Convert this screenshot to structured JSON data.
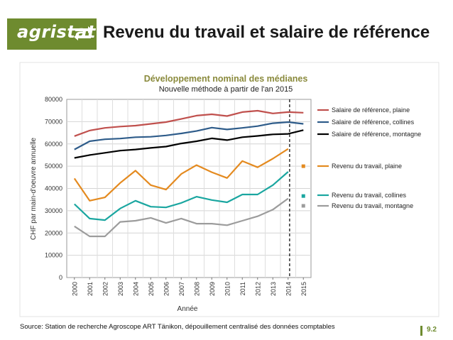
{
  "header": {
    "logo_text": "agristat",
    "title": "Revenu du travail et salaire de référence"
  },
  "chart_data": {
    "type": "line",
    "title": "Développement nominal des médianes",
    "subtitle": "Nouvelle méthode à partir de l'an 2015",
    "xlabel": "Année",
    "ylabel": "CHF par main-d'oeuvre annuelle",
    "ylim": [
      0,
      80000
    ],
    "yticks": [
      0,
      10000,
      20000,
      30000,
      40000,
      50000,
      60000,
      70000,
      80000
    ],
    "ytick_labels": [
      "0",
      "10000",
      "20000",
      "30000",
      "40000",
      "50000",
      "60000",
      "70000",
      "80000"
    ],
    "categories": [
      "2000",
      "2001",
      "2002",
      "2003",
      "2004",
      "2005",
      "2006",
      "2007",
      "2008",
      "2009",
      "2010",
      "2011",
      "2012",
      "2013",
      "2014",
      "2015"
    ],
    "grid": true,
    "legend": "right",
    "break_marker": "between 2014 and 2015",
    "series": [
      {
        "name": "Salaire de référence, plaine",
        "color": "#c0504d",
        "values": [
          63500,
          66000,
          67200,
          67800,
          68200,
          69000,
          69800,
          71200,
          72700,
          73300,
          72500,
          74300,
          74900,
          73700,
          74300,
          74000
        ]
      },
      {
        "name": "Salaire de référence, collines",
        "color": "#2e5c8a",
        "values": [
          57500,
          61200,
          62100,
          62400,
          63000,
          63200,
          63800,
          64700,
          65800,
          67300,
          66500,
          67200,
          68000,
          69300,
          69800,
          69000
        ]
      },
      {
        "name": "Salaire de référence, montagne",
        "color": "#000000",
        "values": [
          53700,
          55000,
          56000,
          57000,
          57500,
          58200,
          58800,
          60200,
          61200,
          62500,
          61700,
          63000,
          63600,
          64300,
          64500,
          66200
        ]
      },
      {
        "name": "Revenu du travail, plaine",
        "color": "#e48a1f",
        "values": [
          44500,
          34500,
          36000,
          42500,
          48000,
          41500,
          39500,
          46500,
          50500,
          47300,
          44700,
          52300,
          49500,
          53400,
          57800,
          null
        ],
        "values_2015_marker": 50000
      },
      {
        "name": "Revenu du travail, collines",
        "color": "#1aa6a0",
        "values": [
          33000,
          26500,
          25800,
          31000,
          34500,
          31800,
          31500,
          33500,
          36300,
          34800,
          33800,
          37300,
          37300,
          41500,
          47500,
          null
        ],
        "values_2015_marker": 36600
      },
      {
        "name": "Revenu du travail, montagne",
        "color": "#9c9c9c",
        "values": [
          23000,
          18500,
          18500,
          25000,
          25500,
          26800,
          24500,
          26500,
          24200,
          24200,
          23500,
          25500,
          27500,
          30500,
          35500,
          null
        ],
        "values_2015_marker": 32200
      }
    ]
  },
  "footer": {
    "source": "Source: Station de recherche Agroscope ART Tänikon, dépouillement centralisé des données comptables",
    "page_number": "9.2"
  }
}
